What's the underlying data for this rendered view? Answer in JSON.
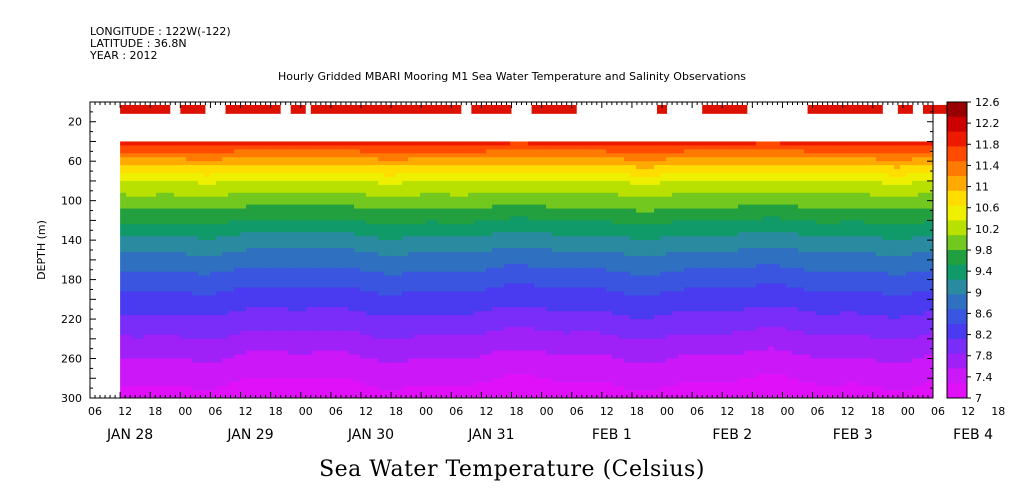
{
  "header": {
    "longitude": "LONGITUDE : 122W(-122)",
    "latitude": "LATITUDE : 36.8N",
    "year": "YEAR : 2012"
  },
  "title": "Hourly Gridded MBARI Mooring M1 Sea Water Temperature and Salinity Observations",
  "ylabel": "DEPTH (m)",
  "colorbar_title": "Sea Water Temperature (Celsius)",
  "x_hour_ticks": [
    "06",
    "12",
    "18",
    "00",
    "06",
    "12",
    "18",
    "00",
    "06",
    "12",
    "18",
    "00",
    "06",
    "12",
    "18",
    "00",
    "06",
    "12",
    "18",
    "00",
    "06",
    "12",
    "18",
    "00",
    "06",
    "12",
    "18",
    "00",
    "06",
    "12",
    "18",
    "00"
  ],
  "x_day_labels": [
    "JAN 28",
    "JAN 29",
    "JAN 30",
    "JAN 31",
    "FEB  1",
    "FEB  2",
    "FEB  3",
    "FEB  4"
  ],
  "y_ticks": [
    "20",
    "60",
    "100",
    "140",
    "180",
    "220",
    "260",
    "300"
  ],
  "colorbar": {
    "levels": [
      "12.6",
      "12.2",
      "11.8",
      "11.4",
      "11",
      "10.6",
      "10.2",
      "9.8",
      "9.4",
      "9",
      "8.6",
      "8.2",
      "7.8",
      "7.4",
      "7"
    ],
    "colors": [
      "#990000",
      "#cc0000",
      "#ee1a00",
      "#ff4a00",
      "#ff7a00",
      "#ffaa00",
      "#ffdd00",
      "#eef000",
      "#b8e000",
      "#72c81e",
      "#22a040",
      "#109a6a",
      "#2a8aa0",
      "#3070c0",
      "#3a55e0",
      "#4a3af0",
      "#7a2cf8",
      "#a020f8",
      "#cc18f8",
      "#e010f8"
    ]
  },
  "chart_data": {
    "type": "heatmap",
    "title": "Hourly Gridded MBARI Mooring M1 Sea Water Temperature and Salinity Observations",
    "xlabel": "",
    "ylabel": "DEPTH (m)",
    "colorbar_label": "Sea Water Temperature (Celsius)",
    "x_range": [
      "2012-01-28 06:00",
      "2012-02-04 06:00"
    ],
    "data_start": "2012-01-28 12:00",
    "ylim": [
      300,
      0
    ],
    "color_range": [
      7,
      12.6
    ],
    "depth_profile": {
      "depth": [
        10,
        40,
        60,
        80,
        100,
        140,
        180,
        220,
        260,
        300
      ],
      "temperature": [
        12.4,
        11.8,
        11.0,
        10.3,
        9.9,
        9.1,
        8.5,
        8.0,
        7.5,
        7.1
      ]
    },
    "surface_segments_12C": [
      [
        "2012-01-28 12:00",
        "2012-01-28 22:00"
      ],
      [
        "2012-01-29 00:00",
        "2012-01-29 05:00"
      ],
      [
        "2012-01-29 09:00",
        "2012-01-29 20:00"
      ],
      [
        "2012-01-29 22:00",
        "2012-01-30 01:00"
      ],
      [
        "2012-01-30 02:00",
        "2012-01-31 08:00"
      ],
      [
        "2012-01-31 10:00",
        "2012-01-31 18:00"
      ],
      [
        "2012-01-31 22:00",
        "2012-02-01 07:00"
      ],
      [
        "2012-02-01 23:00",
        "2012-02-02 01:00"
      ],
      [
        "2012-02-02 08:00",
        "2012-02-02 17:00"
      ],
      [
        "2012-02-03 05:00",
        "2012-02-03 20:00"
      ],
      [
        "2012-02-03 23:00",
        "2012-02-04 02:00"
      ],
      [
        "2012-02-04 04:00",
        "2012-02-04 12:00"
      ]
    ]
  }
}
